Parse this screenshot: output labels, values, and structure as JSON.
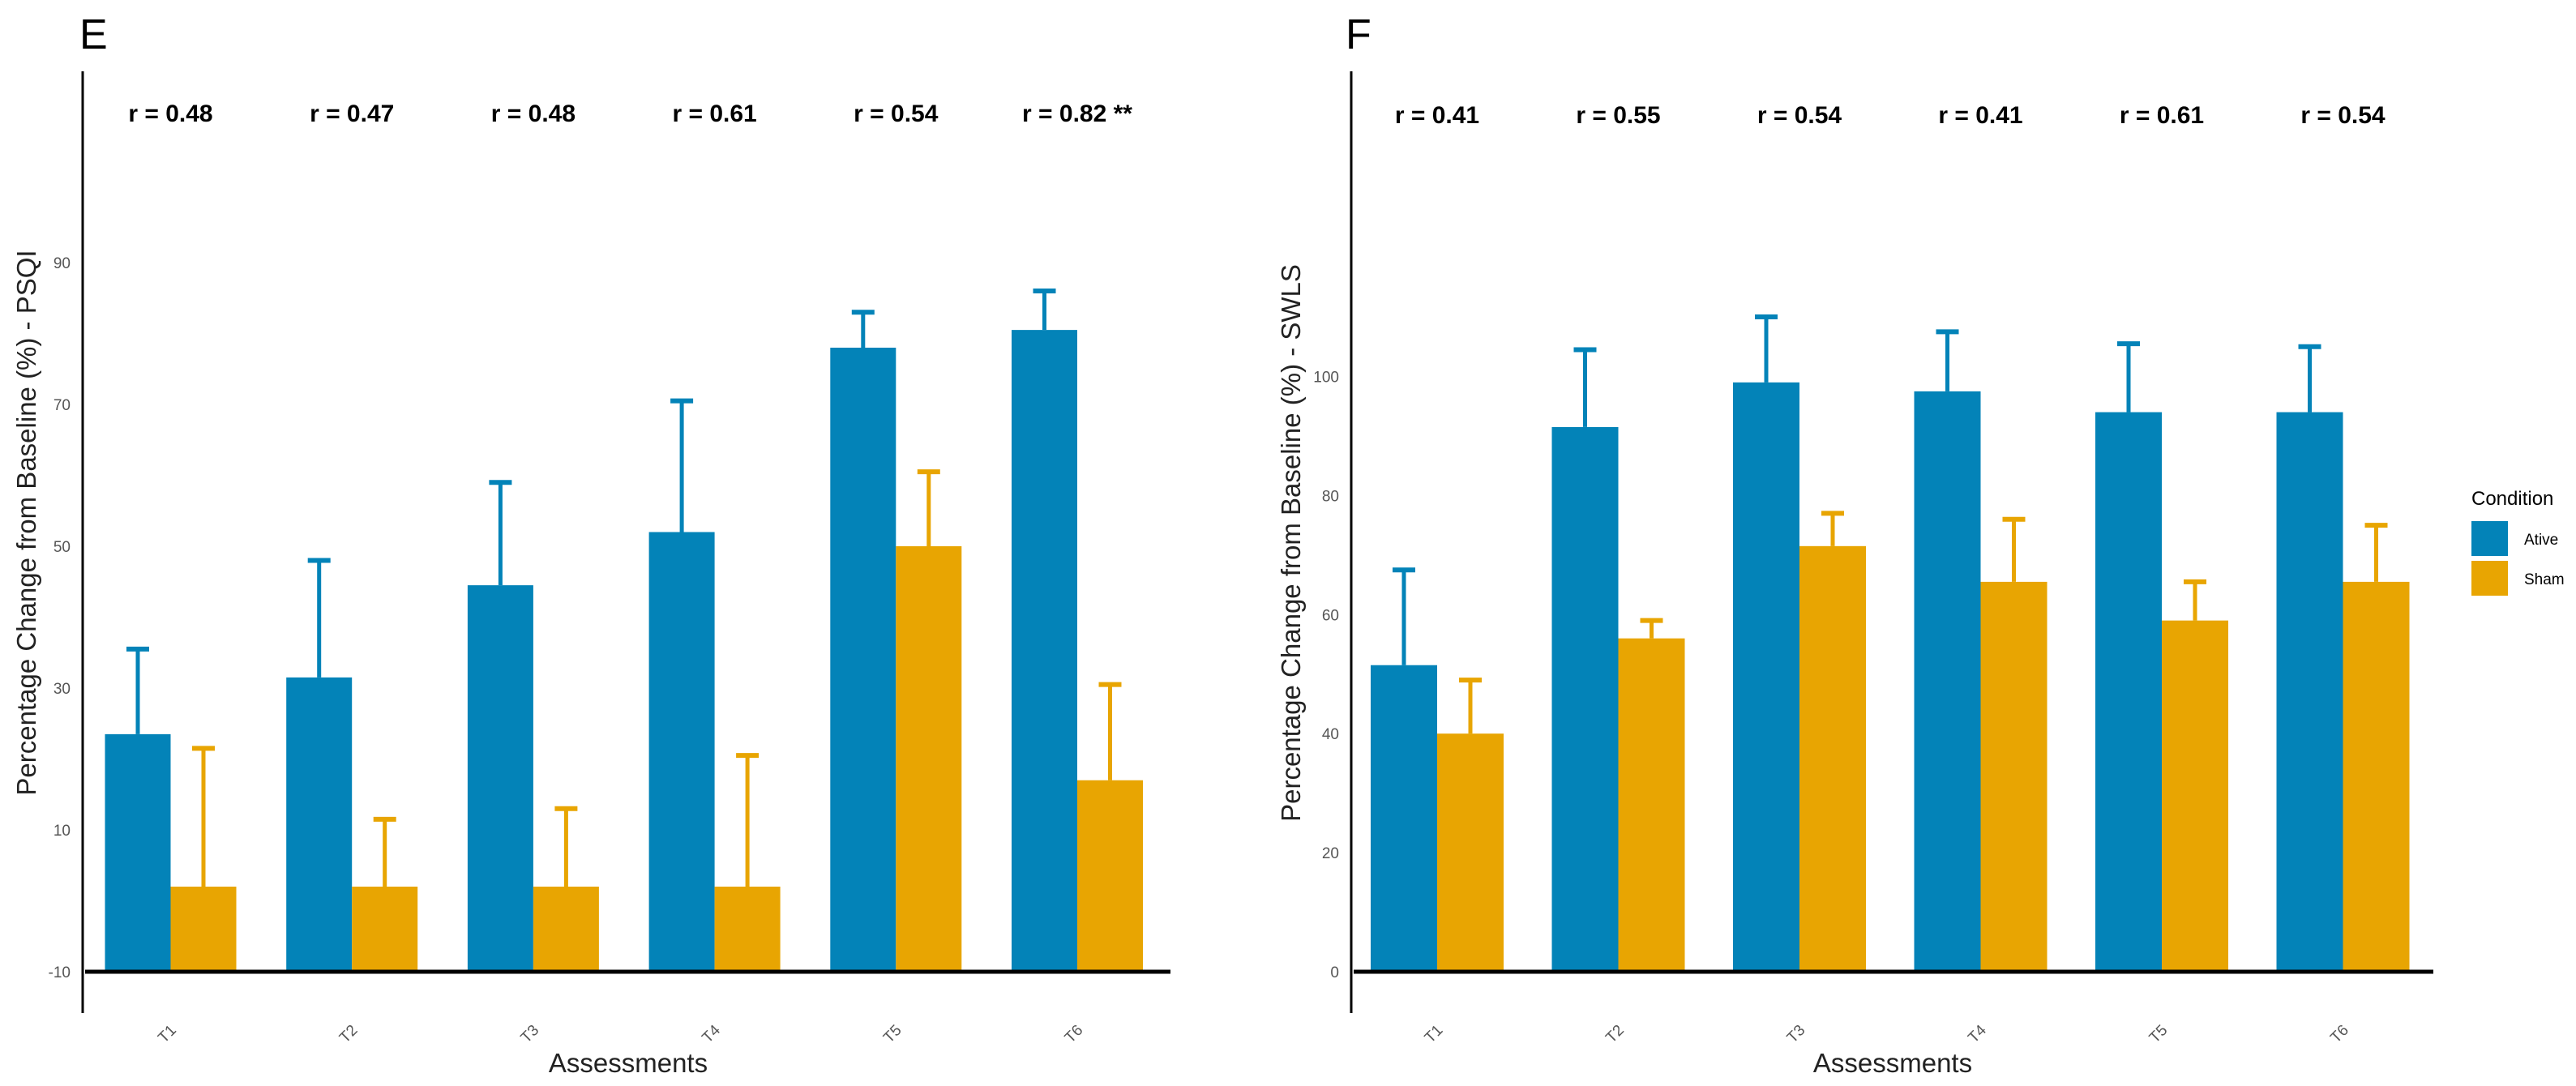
{
  "chart_data": [
    {
      "panel": "E",
      "type": "bar",
      "ylabel": "Percentage Change from Baseline (%) - PSQI",
      "xlabel": "Assessments",
      "categories": [
        "T1",
        "T2",
        "T3",
        "T4",
        "T5",
        "T6"
      ],
      "yticks": [
        -10,
        10,
        30,
        50,
        70,
        90
      ],
      "ylim": [
        -15,
        105
      ],
      "series": [
        {
          "name": "Ative",
          "values": [
            23.5,
            31.5,
            44.5,
            52,
            78,
            80.5
          ],
          "err": [
            12,
            16.5,
            14.5,
            18.5,
            5,
            5.5
          ]
        },
        {
          "name": "Sham",
          "values": [
            2,
            2,
            2,
            2,
            50,
            17
          ],
          "err": [
            19.5,
            9.5,
            11,
            18.5,
            10.5,
            13.5
          ]
        }
      ],
      "annotations": [
        "r = 0.48",
        "r = 0.47",
        "r = 0.48",
        "r = 0.61",
        "r = 0.54",
        "r = 0.82 **"
      ]
    },
    {
      "panel": "F",
      "type": "bar",
      "ylabel": "Percentage Change from Baseline (%) - SWLS",
      "xlabel": "Assessments",
      "categories": [
        "T1",
        "T2",
        "T3",
        "T4",
        "T5",
        "T6"
      ],
      "yticks": [
        0,
        20,
        40,
        60,
        80,
        100
      ],
      "ylim": [
        -7,
        150
      ],
      "series": [
        {
          "name": "Ative",
          "values": [
            51.5,
            91.5,
            99,
            97.5,
            94,
            94
          ],
          "err": [
            16,
            13,
            11,
            10,
            11.5,
            11
          ]
        },
        {
          "name": "Sham",
          "values": [
            40,
            56,
            71.5,
            65.5,
            59,
            65.5
          ],
          "err": [
            9,
            3,
            5.5,
            10.5,
            6.5,
            9.5
          ]
        }
      ],
      "annotations": [
        "r = 0.41",
        "r = 0.55",
        "r = 0.54",
        "r = 0.41",
        "r = 0.61",
        "r = 0.54"
      ]
    }
  ],
  "legend": {
    "title": "Condition",
    "items": [
      {
        "label": "Ative",
        "color": "#0383B8"
      },
      {
        "label": "Sham",
        "color": "#E8A502"
      }
    ]
  }
}
